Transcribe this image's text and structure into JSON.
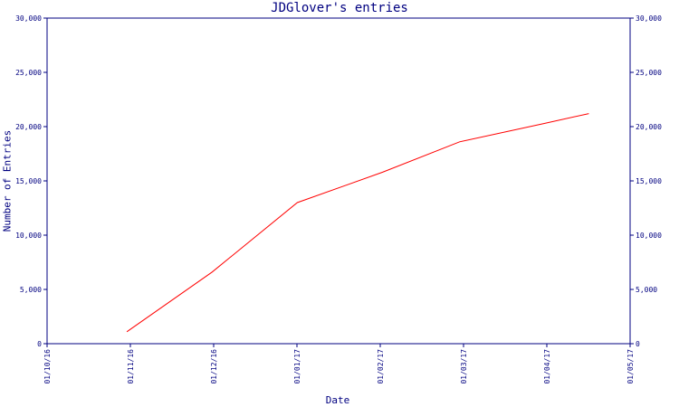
{
  "chart_data": {
    "type": "line",
    "title": "JDGlover's entries",
    "xlabel": "Date",
    "ylabel": "Number of Entries",
    "x_ticks": [
      "01/10/16",
      "01/11/16",
      "01/12/16",
      "01/01/17",
      "01/02/17",
      "01/03/17",
      "01/04/17",
      "01/05/17"
    ],
    "y_ticks": [
      "0",
      "5,000",
      "10,000",
      "15,000",
      "20,000",
      "25,000",
      "30,000"
    ],
    "ylim": [
      0,
      30000
    ],
    "xlim": [
      "2016-10-01",
      "2017-05-01"
    ],
    "grid": false,
    "series": [
      {
        "color": "#ff0000",
        "x": [
          "2016-10-30",
          "2016-11-30",
          "2016-12-31",
          "2017-01-31",
          "2017-02-28",
          "2017-03-31",
          "2017-04-16"
        ],
        "values": [
          1100,
          6600,
          13000,
          15800,
          18600,
          20300,
          21200
        ]
      }
    ],
    "axis_color": "#000080"
  }
}
